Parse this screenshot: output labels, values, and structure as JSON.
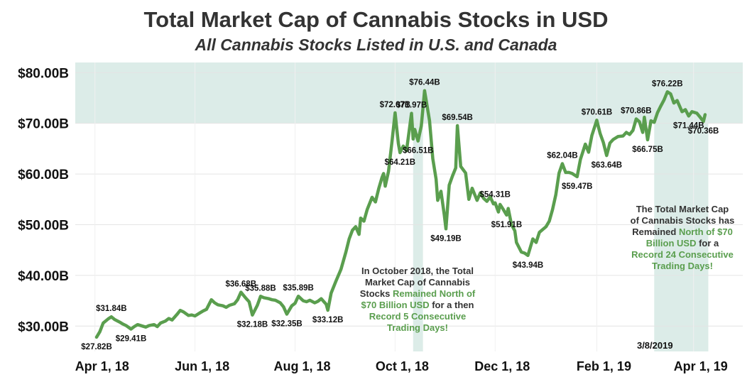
{
  "chart_data": {
    "type": "line",
    "title": "Total Market Cap of Cannabis Stocks in USD",
    "subtitle": "All Cannabis Stocks Listed in U.S. and Canada",
    "ylim": [
      25,
      82
    ],
    "yticks": [
      30,
      40,
      50,
      60,
      70,
      80
    ],
    "ytick_labels": [
      "$30.00B",
      "$40.00B",
      "$50.00B",
      "$60.00B",
      "$70.00B",
      "$80.00B"
    ],
    "xlim": [
      "2018-03-20",
      "2019-05-01"
    ],
    "xticks": [
      "2018-04-01",
      "2018-06-01",
      "2018-08-01",
      "2018-10-01",
      "2018-12-01",
      "2019-02-01",
      "2019-04-01"
    ],
    "xtick_labels": [
      "Apr 1, 18",
      "Jun 1, 18",
      "Aug 1, 18",
      "Oct 1, 18",
      "Dec 1, 18",
      "Feb 1, 19",
      "Apr 1, 19"
    ],
    "grid": true,
    "line_color": "#5a9e4e",
    "band_color": "#dcece8",
    "threshold_band": [
      70,
      82
    ],
    "highlight_periods": [
      {
        "start": "2018-10-12",
        "end": "2018-10-18"
      },
      {
        "start": "2019-03-08",
        "end": "2019-04-10"
      }
    ],
    "reference_label": "3/8/2019",
    "series": [
      {
        "points": [
          [
            "2018-04-02",
            27.82
          ],
          [
            "2018-04-04",
            28.9
          ],
          [
            "2018-04-06",
            30.6
          ],
          [
            "2018-04-09",
            31.4
          ],
          [
            "2018-04-11",
            31.84
          ],
          [
            "2018-04-13",
            31.3
          ],
          [
            "2018-04-16",
            30.8
          ],
          [
            "2018-04-18",
            30.4
          ],
          [
            "2018-04-20",
            30.1
          ],
          [
            "2018-04-23",
            29.41
          ],
          [
            "2018-04-25",
            29.9
          ],
          [
            "2018-04-27",
            30.3
          ],
          [
            "2018-04-30",
            30.0
          ],
          [
            "2018-05-02",
            29.8
          ],
          [
            "2018-05-04",
            30.1
          ],
          [
            "2018-05-07",
            30.3
          ],
          [
            "2018-05-09",
            29.9
          ],
          [
            "2018-05-11",
            30.6
          ],
          [
            "2018-05-14",
            31.0
          ],
          [
            "2018-05-16",
            31.5
          ],
          [
            "2018-05-18",
            31.2
          ],
          [
            "2018-05-21",
            32.3
          ],
          [
            "2018-05-23",
            33.1
          ],
          [
            "2018-05-25",
            32.8
          ],
          [
            "2018-05-28",
            32.1
          ],
          [
            "2018-05-30",
            32.2
          ],
          [
            "2018-06-01",
            32.0
          ],
          [
            "2018-06-04",
            32.6
          ],
          [
            "2018-06-06",
            33.0
          ],
          [
            "2018-06-08",
            33.3
          ],
          [
            "2018-06-11",
            35.2
          ],
          [
            "2018-06-13",
            34.6
          ],
          [
            "2018-06-15",
            34.2
          ],
          [
            "2018-06-18",
            34.0
          ],
          [
            "2018-06-20",
            33.7
          ],
          [
            "2018-06-22",
            34.1
          ],
          [
            "2018-06-25",
            34.4
          ],
          [
            "2018-06-27",
            35.2
          ],
          [
            "2018-06-29",
            36.68
          ],
          [
            "2018-07-02",
            35.5
          ],
          [
            "2018-07-04",
            34.8
          ],
          [
            "2018-07-06",
            32.18
          ],
          [
            "2018-07-09",
            34.1
          ],
          [
            "2018-07-11",
            35.88
          ],
          [
            "2018-07-13",
            35.6
          ],
          [
            "2018-07-16",
            35.4
          ],
          [
            "2018-07-18",
            35.2
          ],
          [
            "2018-07-20",
            35.1
          ],
          [
            "2018-07-23",
            34.6
          ],
          [
            "2018-07-25",
            33.8
          ],
          [
            "2018-07-27",
            32.35
          ],
          [
            "2018-07-30",
            34.0
          ],
          [
            "2018-08-01",
            34.5
          ],
          [
            "2018-08-03",
            35.89
          ],
          [
            "2018-08-06",
            35.0
          ],
          [
            "2018-08-08",
            34.8
          ],
          [
            "2018-08-10",
            35.1
          ],
          [
            "2018-08-13",
            34.6
          ],
          [
            "2018-08-15",
            34.9
          ],
          [
            "2018-08-17",
            35.4
          ],
          [
            "2018-08-20",
            34.3
          ],
          [
            "2018-08-21",
            33.12
          ],
          [
            "2018-08-23",
            36.5
          ],
          [
            "2018-08-26",
            38.9
          ],
          [
            "2018-08-29",
            41.2
          ],
          [
            "2018-09-01",
            44.6
          ],
          [
            "2018-09-03",
            47.2
          ],
          [
            "2018-09-05",
            48.9
          ],
          [
            "2018-09-07",
            49.6
          ],
          [
            "2018-09-09",
            48.1
          ],
          [
            "2018-09-10",
            51.3
          ],
          [
            "2018-09-12",
            50.7
          ],
          [
            "2018-09-14",
            53.0
          ],
          [
            "2018-09-17",
            55.4
          ],
          [
            "2018-09-19",
            54.5
          ],
          [
            "2018-09-21",
            57.1
          ],
          [
            "2018-09-23",
            59.3
          ],
          [
            "2018-09-24",
            60.1
          ],
          [
            "2018-09-25",
            57.6
          ],
          [
            "2018-09-27",
            60.5
          ],
          [
            "2018-09-29",
            66.0
          ],
          [
            "2018-10-01",
            72.07
          ],
          [
            "2018-10-03",
            66.0
          ],
          [
            "2018-10-04",
            64.21
          ],
          [
            "2018-10-06",
            65.5
          ],
          [
            "2018-10-08",
            64.6
          ],
          [
            "2018-10-11",
            71.97
          ],
          [
            "2018-10-12",
            66.9
          ],
          [
            "2018-10-13",
            68.8
          ],
          [
            "2018-10-15",
            66.51
          ],
          [
            "2018-10-17",
            69.5
          ],
          [
            "2018-10-19",
            76.44
          ],
          [
            "2018-10-22",
            70.5
          ],
          [
            "2018-10-24",
            63.0
          ],
          [
            "2018-10-26",
            59.0
          ],
          [
            "2018-10-27",
            54.8
          ],
          [
            "2018-10-29",
            56.6
          ],
          [
            "2018-10-31",
            51.9
          ],
          [
            "2018-11-01",
            49.19
          ],
          [
            "2018-11-03",
            57.8
          ],
          [
            "2018-11-05",
            59.6
          ],
          [
            "2018-11-07",
            61.2
          ],
          [
            "2018-11-08",
            69.54
          ],
          [
            "2018-11-10",
            61.5
          ],
          [
            "2018-11-13",
            60.2
          ],
          [
            "2018-11-15",
            55.0
          ],
          [
            "2018-11-17",
            57.2
          ],
          [
            "2018-11-20",
            54.8
          ],
          [
            "2018-11-22",
            56.3
          ],
          [
            "2018-11-24",
            55.2
          ],
          [
            "2018-11-26",
            54.6
          ],
          [
            "2018-11-28",
            55.5
          ],
          [
            "2018-11-30",
            54.1
          ],
          [
            "2018-12-01",
            54.31
          ],
          [
            "2018-12-03",
            52.5
          ],
          [
            "2018-12-04",
            54.0
          ],
          [
            "2018-12-06",
            53.0
          ],
          [
            "2018-12-08",
            51.91
          ],
          [
            "2018-12-09",
            53.2
          ],
          [
            "2018-12-11",
            50.0
          ],
          [
            "2018-12-13",
            48.8
          ],
          [
            "2018-12-14",
            46.5
          ],
          [
            "2018-12-17",
            44.6
          ],
          [
            "2018-12-19",
            44.4
          ],
          [
            "2018-12-21",
            43.94
          ],
          [
            "2018-12-24",
            47.2
          ],
          [
            "2018-12-26",
            46.5
          ],
          [
            "2018-12-28",
            48.5
          ],
          [
            "2019-01-01",
            49.6
          ],
          [
            "2019-01-03",
            50.7
          ],
          [
            "2019-01-05",
            53.0
          ],
          [
            "2019-01-07",
            55.9
          ],
          [
            "2019-01-09",
            60.2
          ],
          [
            "2019-01-11",
            62.04
          ],
          [
            "2019-01-13",
            60.3
          ],
          [
            "2019-01-15",
            60.3
          ],
          [
            "2019-01-17",
            60.1
          ],
          [
            "2019-01-20",
            59.47
          ],
          [
            "2019-01-22",
            62.9
          ],
          [
            "2019-01-25",
            65.9
          ],
          [
            "2019-01-27",
            64.3
          ],
          [
            "2019-01-29",
            67.6
          ],
          [
            "2019-02-01",
            70.61
          ],
          [
            "2019-02-03",
            68.0
          ],
          [
            "2019-02-05",
            66.2
          ],
          [
            "2019-02-07",
            63.64
          ],
          [
            "2019-02-09",
            66.1
          ],
          [
            "2019-02-11",
            66.8
          ],
          [
            "2019-02-14",
            67.4
          ],
          [
            "2019-02-17",
            67.5
          ],
          [
            "2019-02-19",
            68.2
          ],
          [
            "2019-02-21",
            67.8
          ],
          [
            "2019-02-23",
            68.6
          ],
          [
            "2019-02-25",
            70.86
          ],
          [
            "2019-02-27",
            70.3
          ],
          [
            "2019-03-01",
            68.2
          ],
          [
            "2019-03-02",
            71.2
          ],
          [
            "2019-03-04",
            66.75
          ],
          [
            "2019-03-06",
            70.5
          ],
          [
            "2019-03-08",
            70.2
          ],
          [
            "2019-03-10",
            72.1
          ],
          [
            "2019-03-12",
            73.4
          ],
          [
            "2019-03-14",
            74.6
          ],
          [
            "2019-03-16",
            76.22
          ],
          [
            "2019-03-18",
            75.8
          ],
          [
            "2019-03-20",
            74.0
          ],
          [
            "2019-03-22",
            74.5
          ],
          [
            "2019-03-25",
            72.3
          ],
          [
            "2019-03-27",
            72.7
          ],
          [
            "2019-03-29",
            71.44
          ],
          [
            "2019-03-31",
            72.3
          ],
          [
            "2019-04-03",
            72.0
          ],
          [
            "2019-04-05",
            71.2
          ],
          [
            "2019-04-07",
            70.36
          ],
          [
            "2019-04-08",
            71.7
          ]
        ]
      }
    ],
    "data_labels": [
      {
        "date": "2018-04-02",
        "value": 27.82,
        "text": "$27.82B"
      },
      {
        "date": "2018-04-11",
        "value": 31.84,
        "text": "$31.84B"
      },
      {
        "date": "2018-04-23",
        "value": 29.41,
        "text": "$29.41B"
      },
      {
        "date": "2018-06-29",
        "value": 36.68,
        "text": "$36.68B"
      },
      {
        "date": "2018-07-06",
        "value": 32.18,
        "text": "$32.18B"
      },
      {
        "date": "2018-07-11",
        "value": 35.88,
        "text": "$35.88B"
      },
      {
        "date": "2018-07-27",
        "value": 32.35,
        "text": "$32.35B"
      },
      {
        "date": "2018-08-03",
        "value": 35.89,
        "text": "$35.89B"
      },
      {
        "date": "2018-08-21",
        "value": 33.12,
        "text": "$33.12B"
      },
      {
        "date": "2018-10-01",
        "value": 72.07,
        "text": "$72.07B"
      },
      {
        "date": "2018-10-04",
        "value": 64.21,
        "text": "$64.21B"
      },
      {
        "date": "2018-10-11",
        "value": 71.97,
        "text": "$71.97B"
      },
      {
        "date": "2018-10-15",
        "value": 66.51,
        "text": "$66.51B"
      },
      {
        "date": "2018-10-19",
        "value": 76.44,
        "text": "$76.44B"
      },
      {
        "date": "2018-11-01",
        "value": 49.19,
        "text": "$49.19B"
      },
      {
        "date": "2018-11-08",
        "value": 69.54,
        "text": "$69.54B"
      },
      {
        "date": "2018-12-01",
        "value": 54.31,
        "text": "$54.31B"
      },
      {
        "date": "2018-12-08",
        "value": 51.91,
        "text": "$51.91B"
      },
      {
        "date": "2018-12-21",
        "value": 43.94,
        "text": "$43.94B"
      },
      {
        "date": "2019-01-11",
        "value": 62.04,
        "text": "$62.04B"
      },
      {
        "date": "2019-01-20",
        "value": 59.47,
        "text": "$59.47B"
      },
      {
        "date": "2019-02-01",
        "value": 70.61,
        "text": "$70.61B"
      },
      {
        "date": "2019-02-07",
        "value": 63.64,
        "text": "$63.64B"
      },
      {
        "date": "2019-02-25",
        "value": 70.86,
        "text": "$70.86B"
      },
      {
        "date": "2019-03-04",
        "value": 66.75,
        "text": "$66.75B"
      },
      {
        "date": "2019-03-16",
        "value": 76.22,
        "text": "$76.22B"
      },
      {
        "date": "2019-03-29",
        "value": 71.44,
        "text": "$71.44B"
      },
      {
        "date": "2019-04-07",
        "value": 70.36,
        "text": "$70.36B"
      }
    ]
  },
  "annotations": {
    "oct_2018": {
      "line1": "In October 2018, the Total",
      "line2": "Market Cap of Cannabis",
      "line3a": "Stocks ",
      "line3b": "Remained North of",
      "line4a": "$70 Billion USD",
      "line4b": " for a then",
      "line5": "Record 5 Consecutive",
      "line6": "Trading Days!"
    },
    "mar_2019": {
      "line1": "The Total Market Cap",
      "line2": "of Cannabis Stocks has",
      "line3a": "Remained ",
      "line3b": "North of $70",
      "line4a": "Billion USD",
      "line4b": " for a",
      "line5": "Record 24 Consecutive",
      "line6": "Trading Days!"
    }
  }
}
